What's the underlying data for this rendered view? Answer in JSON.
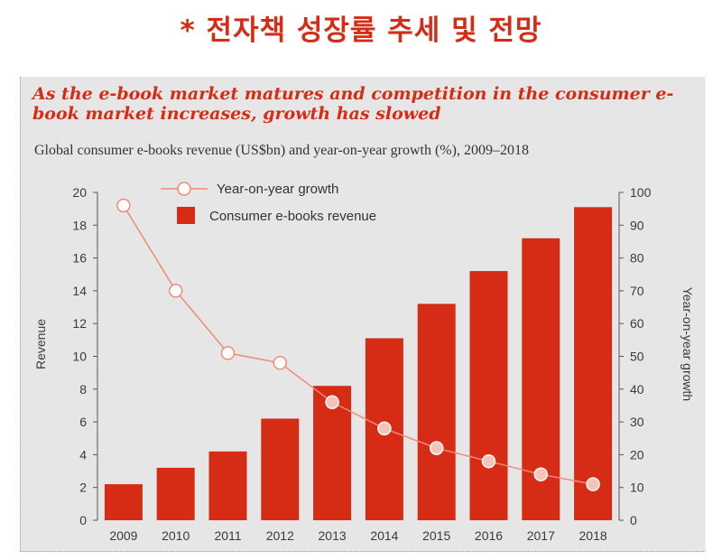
{
  "slide": {
    "title": "* 전자책 성장률 추세 및 전망"
  },
  "chart_data": {
    "type": "bar+line",
    "headline": "As the e-book market matures and competition in the consumer e-book market increases, growth has slowed",
    "subtitle": "Global consumer e-books revenue (US$bn) and year-on-year growth (%), 2009–2018",
    "categories": [
      "2009",
      "2010",
      "2011",
      "2012",
      "2013",
      "2014",
      "2015",
      "2016",
      "2017",
      "2018"
    ],
    "series": [
      {
        "name": "Consumer e-books revenue",
        "type": "bar",
        "axis": "left",
        "values": [
          2.2,
          3.2,
          4.2,
          6.2,
          8.2,
          11.1,
          13.2,
          15.2,
          17.2,
          19.1
        ],
        "color": "#d62b14"
      },
      {
        "name": "Year-on-year growth",
        "type": "line",
        "axis": "right",
        "values": [
          96,
          70,
          51,
          48,
          36,
          28,
          22,
          18,
          14,
          11
        ],
        "color": "#f08a78"
      }
    ],
    "ylabel_left": "Revenue",
    "ylabel_right": "Year-on-year growth",
    "ylim_left": [
      0,
      20
    ],
    "ylim_right": [
      0,
      100
    ],
    "yticks_left": [
      "0",
      "2",
      "4",
      "6",
      "8",
      "10",
      "12",
      "14",
      "16",
      "18",
      "20"
    ],
    "yticks_right": [
      "0",
      "10",
      "20",
      "30",
      "40",
      "50",
      "60",
      "70",
      "80",
      "90",
      "100"
    ],
    "grid": false,
    "legend": [
      "Year-on-year growth",
      "Consumer e-books revenue"
    ]
  }
}
